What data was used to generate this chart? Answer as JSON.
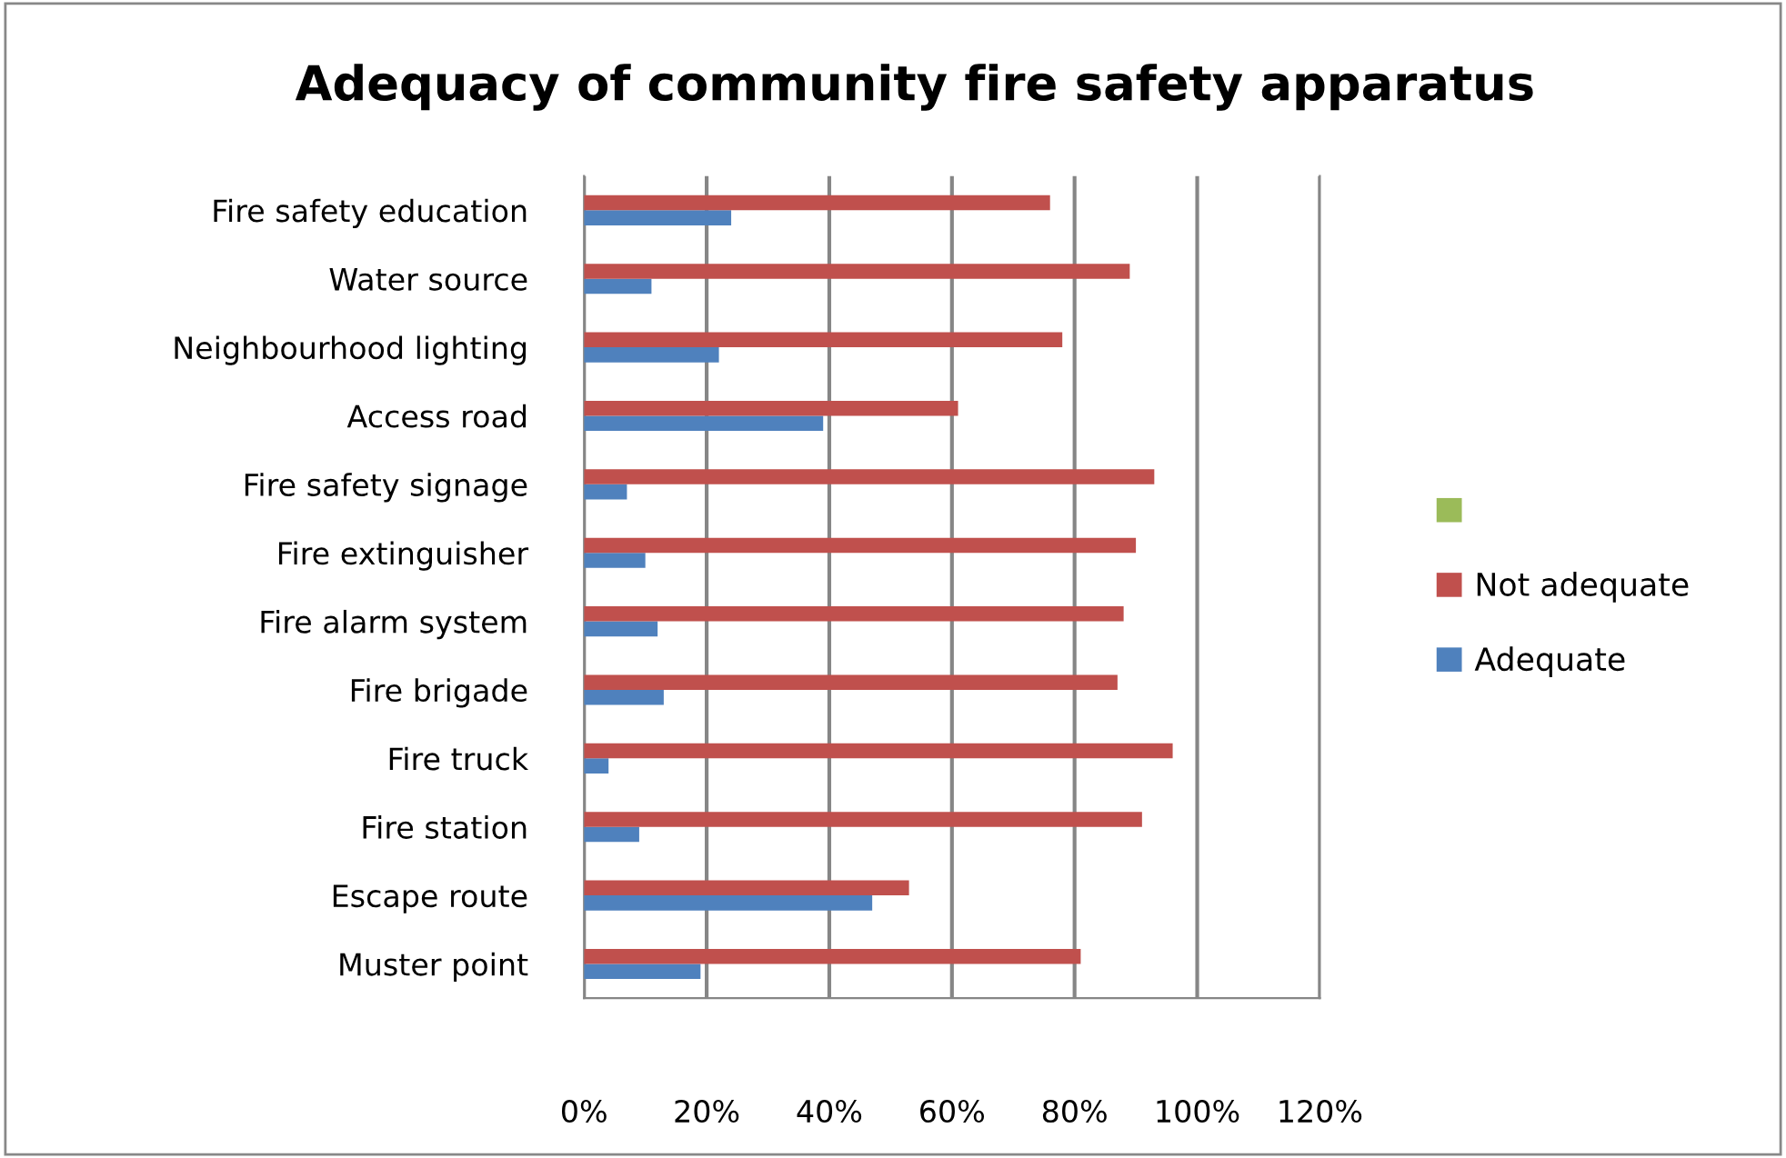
{
  "chart_data": {
    "type": "bar",
    "orientation": "horizontal",
    "title": "Adequacy of community fire safety apparatus",
    "categories": [
      "Fire safety education",
      "Water source",
      "Neighbourhood lighting",
      "Access road",
      "Fire safety signage",
      "Fire extinguisher",
      "Fire alarm system",
      "Fire brigade",
      "Fire truck",
      "Fire station",
      "Escape route",
      "Muster point"
    ],
    "series": [
      {
        "name": "Adequate",
        "color": "#4f81bd",
        "values": [
          24,
          11,
          22,
          39,
          7,
          10,
          12,
          13,
          4,
          9,
          47,
          19
        ]
      },
      {
        "name": "Not adequate",
        "color": "#c0504d",
        "values": [
          76,
          89,
          78,
          61,
          93,
          90,
          88,
          87,
          96,
          91,
          53,
          81
        ]
      },
      {
        "color": "#9bbb59",
        "values": [
          null,
          null,
          null,
          null,
          null,
          null,
          null,
          null,
          null,
          null,
          null,
          null
        ]
      }
    ],
    "xlim": [
      0,
      120
    ],
    "xticks": [
      {
        "value": 0,
        "label": "0%"
      },
      {
        "value": 20,
        "label": "20%"
      },
      {
        "value": 40,
        "label": "40%"
      },
      {
        "value": 60,
        "label": "60%"
      },
      {
        "value": 80,
        "label": "80%"
      },
      {
        "value": 100,
        "label": "100%"
      },
      {
        "value": 120,
        "label": "120%"
      }
    ],
    "grid": "x",
    "legend": "right"
  }
}
